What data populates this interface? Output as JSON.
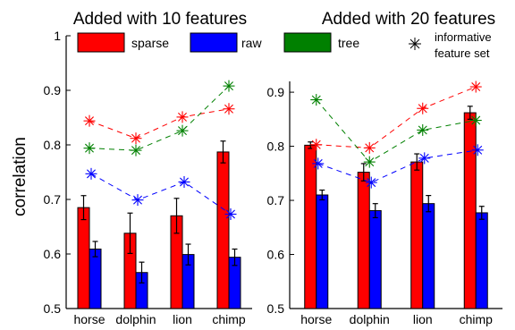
{
  "chart_data": [
    {
      "type": "bar",
      "title": "Added with 10 features",
      "ylabel": "correlation",
      "ylim": [
        0.5,
        1
      ],
      "yticks": [
        "0.5",
        "0.6",
        "0.7",
        "0.8",
        "0.9",
        "1"
      ],
      "categories": [
        "horse",
        "dolphin",
        "lion",
        "chimp"
      ],
      "series": [
        {
          "name": "sparse",
          "color": "#ff0000",
          "values": [
            0.685,
            0.638,
            0.67,
            0.787
          ],
          "errors": [
            0.022,
            0.037,
            0.032,
            0.02
          ]
        },
        {
          "name": "raw",
          "color": "#0000ff",
          "values": [
            0.609,
            0.566,
            0.599,
            0.594
          ],
          "errors": [
            0.014,
            0.019,
            0.019,
            0.015
          ]
        }
      ],
      "informative_feature_set": [
        {
          "name": "sparse",
          "color": "#ff0000",
          "values": [
            0.844,
            0.812,
            0.851,
            0.866
          ]
        },
        {
          "name": "raw",
          "color": "#0000ff",
          "values": [
            0.747,
            0.699,
            0.732,
            0.673
          ]
        },
        {
          "name": "tree",
          "color": "#008000",
          "values": [
            0.794,
            0.79,
            0.826,
            0.908
          ]
        }
      ]
    },
    {
      "type": "bar",
      "title": "Added with 20 features",
      "ylim": [
        0.5,
        0.92
      ],
      "yticks": [
        "0.5",
        "0.6",
        "0.7",
        "0.8",
        "0.9"
      ],
      "categories": [
        "horse",
        "dolphin",
        "lion",
        "chimp"
      ],
      "series": [
        {
          "name": "sparse",
          "color": "#ff0000",
          "values": [
            0.802,
            0.752,
            0.771,
            0.862
          ],
          "errors": [
            0.006,
            0.016,
            0.015,
            0.012
          ]
        },
        {
          "name": "raw",
          "color": "#0000ff",
          "values": [
            0.71,
            0.681,
            0.694,
            0.677
          ],
          "errors": [
            0.009,
            0.013,
            0.015,
            0.012
          ]
        }
      ],
      "informative_feature_set": [
        {
          "name": "sparse",
          "color": "#ff0000",
          "values": [
            0.803,
            0.797,
            0.87,
            0.91
          ]
        },
        {
          "name": "raw",
          "color": "#0000ff",
          "values": [
            0.768,
            0.733,
            0.778,
            0.793
          ]
        },
        {
          "name": "tree",
          "color": "#008000",
          "values": [
            0.886,
            0.771,
            0.83,
            0.848
          ]
        }
      ]
    }
  ],
  "legend": {
    "items": [
      {
        "label": "sparse",
        "color": "#ff0000"
      },
      {
        "label": "raw",
        "color": "#0000ff"
      },
      {
        "label": "tree",
        "color": "#008000"
      }
    ],
    "marker_label_line1": "informative",
    "marker_label_line2": "feature set"
  }
}
